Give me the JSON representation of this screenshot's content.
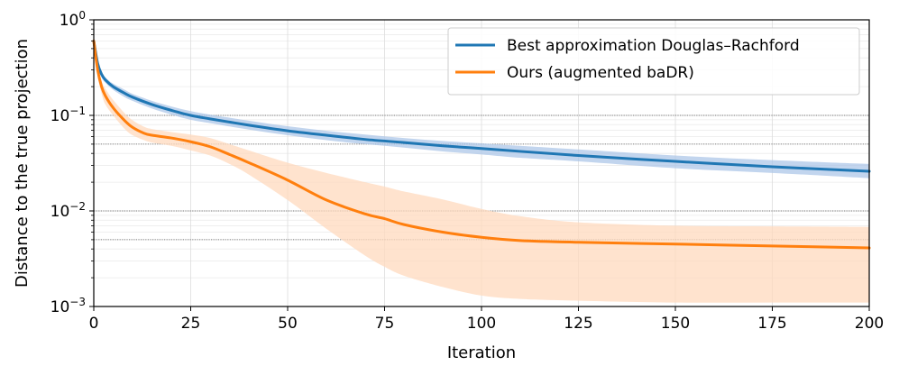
{
  "chart_data": {
    "type": "line",
    "title": "",
    "xlabel": "Iteration",
    "ylabel": "Distance to the true projection",
    "xlim": [
      0,
      200
    ],
    "ylim": [
      0.001,
      1
    ],
    "yscale": "log",
    "x_ticks": [
      0,
      25,
      50,
      75,
      100,
      125,
      150,
      175,
      200
    ],
    "y_ticks": [
      {
        "value": 1,
        "base": "10",
        "exp": "0"
      },
      {
        "value": 0.1,
        "base": "10",
        "exp": "−1"
      },
      {
        "value": 0.01,
        "base": "10",
        "exp": "−2"
      },
      {
        "value": 0.001,
        "base": "10",
        "exp": "−3"
      }
    ],
    "reference_lines": [
      0.1,
      0.05,
      0.01,
      0.005
    ],
    "grid": true,
    "legend_position": "top-right",
    "series": [
      {
        "name": "Best approximation Douglas–Rachford",
        "color": "#1f77b4",
        "band_color": "#aec7e8",
        "x": [
          0,
          1,
          2,
          3,
          5,
          8,
          10,
          15,
          20,
          25,
          30,
          40,
          50,
          60,
          70,
          80,
          90,
          100,
          110,
          125,
          150,
          175,
          200
        ],
        "y": [
          0.6,
          0.35,
          0.27,
          0.235,
          0.2,
          0.17,
          0.155,
          0.13,
          0.113,
          0.1,
          0.092,
          0.079,
          0.069,
          0.062,
          0.056,
          0.052,
          0.048,
          0.045,
          0.042,
          0.038,
          0.033,
          0.029,
          0.026
        ],
        "lower": [
          0.55,
          0.32,
          0.25,
          0.22,
          0.185,
          0.155,
          0.142,
          0.118,
          0.102,
          0.09,
          0.083,
          0.071,
          0.062,
          0.055,
          0.05,
          0.046,
          0.042,
          0.039,
          0.036,
          0.033,
          0.028,
          0.025,
          0.022
        ],
        "upper": [
          0.66,
          0.38,
          0.29,
          0.25,
          0.215,
          0.185,
          0.168,
          0.142,
          0.124,
          0.111,
          0.102,
          0.088,
          0.077,
          0.069,
          0.063,
          0.058,
          0.054,
          0.051,
          0.048,
          0.044,
          0.038,
          0.034,
          0.031
        ]
      },
      {
        "name": "Ours (augmented baDR)",
        "color": "#ff7f0e",
        "band_color": "#ffd9be",
        "x": [
          0,
          1,
          2,
          3,
          5,
          8,
          10,
          13,
          15,
          20,
          25,
          30,
          35,
          40,
          50,
          60,
          70,
          75,
          80,
          90,
          100,
          110,
          125,
          150,
          175,
          200
        ],
        "y": [
          0.6,
          0.3,
          0.2,
          0.16,
          0.12,
          0.088,
          0.075,
          0.065,
          0.062,
          0.058,
          0.053,
          0.047,
          0.039,
          0.032,
          0.021,
          0.013,
          0.0093,
          0.0083,
          0.0072,
          0.006,
          0.0053,
          0.0049,
          0.0047,
          0.0045,
          0.0043,
          0.0041
        ],
        "lower": [
          0.55,
          0.26,
          0.17,
          0.13,
          0.1,
          0.072,
          0.062,
          0.055,
          0.052,
          0.048,
          0.043,
          0.038,
          0.031,
          0.024,
          0.013,
          0.0065,
          0.0034,
          0.0026,
          0.0021,
          0.0016,
          0.0013,
          0.0012,
          0.00115,
          0.0011,
          0.0011,
          0.0011
        ],
        "upper": [
          0.66,
          0.34,
          0.23,
          0.19,
          0.145,
          0.105,
          0.089,
          0.076,
          0.072,
          0.067,
          0.063,
          0.058,
          0.05,
          0.043,
          0.032,
          0.025,
          0.02,
          0.018,
          0.016,
          0.0132,
          0.0105,
          0.0088,
          0.0076,
          0.007,
          0.0069,
          0.0068
        ]
      }
    ]
  }
}
